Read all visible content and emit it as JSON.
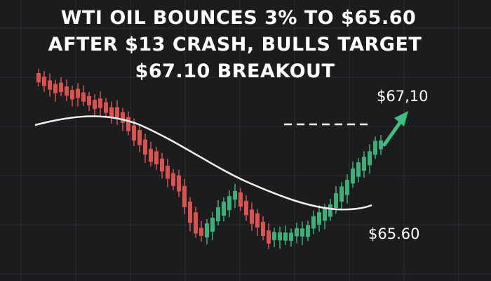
{
  "headline": {
    "lines": [
      "WTI OIL BOUNCES 3% TO $65.60",
      "AFTER $13 CRASH, BULLS TARGET",
      "$67.10 BREAKOUT"
    ]
  },
  "labels": {
    "target": "$67,10",
    "current": "$65.60"
  }
}
